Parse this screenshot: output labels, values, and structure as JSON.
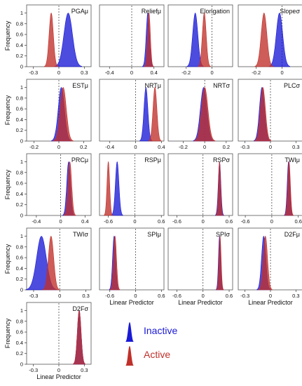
{
  "figure": {
    "ylabel": "Frequency",
    "xlabel": "Linear Predictor"
  },
  "legend": {
    "inactive": {
      "label": "Inactive",
      "color": "#1a1ad6"
    },
    "active": {
      "label": "Active",
      "color": "#c0302a"
    }
  },
  "chart_data": [
    {
      "type": "area",
      "title": "PGAμ",
      "xticks": [
        "-0.3",
        "0",
        "0.3"
      ],
      "xlim": [
        -0.38,
        0.38
      ],
      "ylim": [
        0,
        1.15
      ],
      "yticks": [
        "0",
        "0.2",
        "0.4",
        "0.6",
        "0.8",
        "1"
      ],
      "show_ylabel": true,
      "show_xlabel": false,
      "series": [
        {
          "name": "Inactive",
          "mean": 0.11,
          "sd": 0.05
        },
        {
          "name": "Active",
          "mean": -0.09,
          "sd": 0.025
        }
      ]
    },
    {
      "type": "area",
      "title": "Reliefμ",
      "xticks": [
        "-0.4",
        "0",
        "0.4"
      ],
      "xlim": [
        -0.58,
        0.58
      ],
      "ylim": [
        0,
        1.15
      ],
      "yticks": [],
      "show_ylabel": false,
      "show_xlabel": false,
      "series": [
        {
          "name": "Inactive",
          "mean": 0.29,
          "sd": 0.03
        },
        {
          "name": "Active",
          "mean": 0.31,
          "sd": 0.025
        }
      ]
    },
    {
      "type": "area",
      "title": "Elongation",
      "xticks": [
        "-0.2",
        "0"
      ],
      "xlim": [
        -0.34,
        0.16
      ],
      "ylim": [
        0,
        1.15
      ],
      "yticks": [],
      "show_ylabel": false,
      "show_xlabel": false,
      "series": [
        {
          "name": "Inactive",
          "mean": -0.13,
          "sd": 0.02
        },
        {
          "name": "Active",
          "mean": -0.06,
          "sd": 0.015
        }
      ]
    },
    {
      "type": "area",
      "title": "Slopeσ",
      "xticks": [
        "-0.2",
        "0"
      ],
      "xlim": [
        -0.34,
        0.16
      ],
      "ylim": [
        0,
        1.15
      ],
      "yticks": [],
      "show_ylabel": false,
      "show_xlabel": false,
      "series": [
        {
          "name": "Inactive",
          "mean": -0.02,
          "sd": 0.025
        },
        {
          "name": "Active",
          "mean": -0.14,
          "sd": 0.022
        }
      ]
    },
    {
      "type": "area",
      "title": "ESTμ",
      "xticks": [
        "-0.2",
        "0",
        "0.2"
      ],
      "xlim": [
        -0.26,
        0.26
      ],
      "ylim": [
        0,
        1.15
      ],
      "yticks": [
        "0",
        "0.2",
        "0.4",
        "0.6",
        "0.8",
        "1"
      ],
      "show_ylabel": true,
      "show_xlabel": false,
      "series": [
        {
          "name": "Inactive",
          "mean": 0.02,
          "sd": 0.025
        },
        {
          "name": "Active",
          "mean": 0.035,
          "sd": 0.025
        }
      ]
    },
    {
      "type": "area",
      "title": "NRTμ",
      "xticks": [
        "-0.4",
        "0",
        "0.4"
      ],
      "xlim": [
        -0.56,
        0.44
      ],
      "ylim": [
        0,
        1.15
      ],
      "yticks": [],
      "show_ylabel": false,
      "show_xlabel": false,
      "series": [
        {
          "name": "Inactive",
          "mean": 0.16,
          "sd": 0.03
        },
        {
          "name": "Active",
          "mean": 0.3,
          "sd": 0.03
        }
      ]
    },
    {
      "type": "area",
      "title": "NRTσ",
      "xticks": [
        "-0.2",
        "0",
        "0.2"
      ],
      "xlim": [
        -0.34,
        0.26
      ],
      "ylim": [
        0,
        1.15
      ],
      "yticks": [],
      "show_ylabel": false,
      "show_xlabel": false,
      "series": [
        {
          "name": "Inactive",
          "mean": -0.01,
          "sd": 0.03
        },
        {
          "name": "Active",
          "mean": 0.0,
          "sd": 0.03
        }
      ]
    },
    {
      "type": "area",
      "title": "PLCσ",
      "xticks": [
        "-0.3",
        "0",
        "0.3"
      ],
      "xlim": [
        -0.38,
        0.38
      ],
      "ylim": [
        0,
        1.15
      ],
      "yticks": [],
      "show_ylabel": false,
      "show_xlabel": false,
      "series": [
        {
          "name": "Inactive",
          "mean": -0.1,
          "sd": 0.03
        },
        {
          "name": "Active",
          "mean": -0.09,
          "sd": 0.03
        }
      ]
    },
    {
      "type": "area",
      "title": "PRCμ",
      "xticks": [
        "-0.4",
        "0",
        "0.4"
      ],
      "xlim": [
        -0.56,
        0.5
      ],
      "ylim": [
        0,
        1.15
      ],
      "yticks": [
        "0",
        "0.2",
        "0.4",
        "0.6",
        "0.8",
        "1"
      ],
      "show_ylabel": true,
      "show_xlabel": false,
      "series": [
        {
          "name": "Inactive",
          "mean": 0.13,
          "sd": 0.03
        },
        {
          "name": "Active",
          "mean": 0.15,
          "sd": 0.03
        }
      ]
    },
    {
      "type": "area",
      "title": "RSPμ",
      "xticks": [
        "-0.6",
        "0",
        "0.6"
      ],
      "xlim": [
        -0.8,
        0.66
      ],
      "ylim": [
        0,
        1.15
      ],
      "yticks": [],
      "show_ylabel": false,
      "show_xlabel": false,
      "series": [
        {
          "name": "Inactive",
          "mean": -0.4,
          "sd": 0.04
        },
        {
          "name": "Active",
          "mean": -0.6,
          "sd": 0.03
        }
      ]
    },
    {
      "type": "area",
      "title": "RSPσ",
      "xticks": [
        "-0.6",
        "0",
        "0.6"
      ],
      "xlim": [
        -0.8,
        0.68
      ],
      "ylim": [
        0,
        1.15
      ],
      "yticks": [],
      "show_ylabel": false,
      "show_xlabel": false,
      "series": [
        {
          "name": "Inactive",
          "mean": 0.38,
          "sd": 0.03
        },
        {
          "name": "Active",
          "mean": 0.38,
          "sd": 0.025
        }
      ]
    },
    {
      "type": "area",
      "title": "TWIμ",
      "xticks": [
        "-0.6",
        "0",
        "0.6"
      ],
      "xlim": [
        -0.76,
        0.7
      ],
      "ylim": [
        0,
        1.15
      ],
      "yticks": [],
      "show_ylabel": false,
      "show_xlabel": false,
      "series": [
        {
          "name": "Inactive",
          "mean": 0.38,
          "sd": 0.03
        },
        {
          "name": "Active",
          "mean": 0.39,
          "sd": 0.03
        }
      ]
    },
    {
      "type": "area",
      "title": "TWIσ",
      "xticks": [
        "-0.3",
        "0",
        "0.3"
      ],
      "xlim": [
        -0.38,
        0.36
      ],
      "ylim": [
        0,
        1.15
      ],
      "yticks": [
        "0",
        "0.2",
        "0.4",
        "0.6",
        "0.8",
        "1"
      ],
      "show_ylabel": true,
      "show_xlabel": false,
      "series": [
        {
          "name": "Inactive",
          "mean": -0.21,
          "sd": 0.055
        },
        {
          "name": "Active",
          "mean": -0.1,
          "sd": 0.03
        }
      ]
    },
    {
      "type": "area",
      "title": "SPIμ",
      "xticks": [
        "-0.6",
        "0",
        "0.6"
      ],
      "xlim": [
        -0.84,
        0.66
      ],
      "ylim": [
        0,
        1.15
      ],
      "yticks": [],
      "show_ylabel": false,
      "show_xlabel": true,
      "series": [
        {
          "name": "Inactive",
          "mean": -0.5,
          "sd": 0.035
        },
        {
          "name": "Active",
          "mean": -0.48,
          "sd": 0.035
        }
      ]
    },
    {
      "type": "area",
      "title": "SPIσ",
      "xticks": [
        "-0.6",
        "0",
        "0.6"
      ],
      "xlim": [
        -0.8,
        0.68
      ],
      "ylim": [
        0,
        1.15
      ],
      "yticks": [],
      "show_ylabel": false,
      "show_xlabel": true,
      "series": [
        {
          "name": "Inactive",
          "mean": 0.38,
          "sd": 0.025
        },
        {
          "name": "Active",
          "mean": 0.39,
          "sd": 0.025
        }
      ]
    },
    {
      "type": "area",
      "title": "D2Fμ",
      "xticks": [
        "-0.3",
        "0",
        "0.3"
      ],
      "xlim": [
        -0.38,
        0.38
      ],
      "ylim": [
        0,
        1.15
      ],
      "yticks": [],
      "show_ylabel": false,
      "show_xlabel": true,
      "series": [
        {
          "name": "Inactive",
          "mean": -0.08,
          "sd": 0.025
        },
        {
          "name": "Active",
          "mean": -0.06,
          "sd": 0.025
        }
      ]
    },
    {
      "type": "area",
      "title": "D2Fσ",
      "xticks": [
        "-0.3",
        "0",
        "0.3"
      ],
      "xlim": [
        -0.38,
        0.38
      ],
      "ylim": [
        0,
        1.15
      ],
      "yticks": [
        "0",
        "0.2",
        "0.4",
        "0.6",
        "0.8",
        "1"
      ],
      "show_ylabel": true,
      "show_xlabel": true,
      "series": [
        {
          "name": "Inactive",
          "mean": 0.24,
          "sd": 0.022
        },
        {
          "name": "Active",
          "mean": 0.24,
          "sd": 0.022
        }
      ]
    }
  ]
}
